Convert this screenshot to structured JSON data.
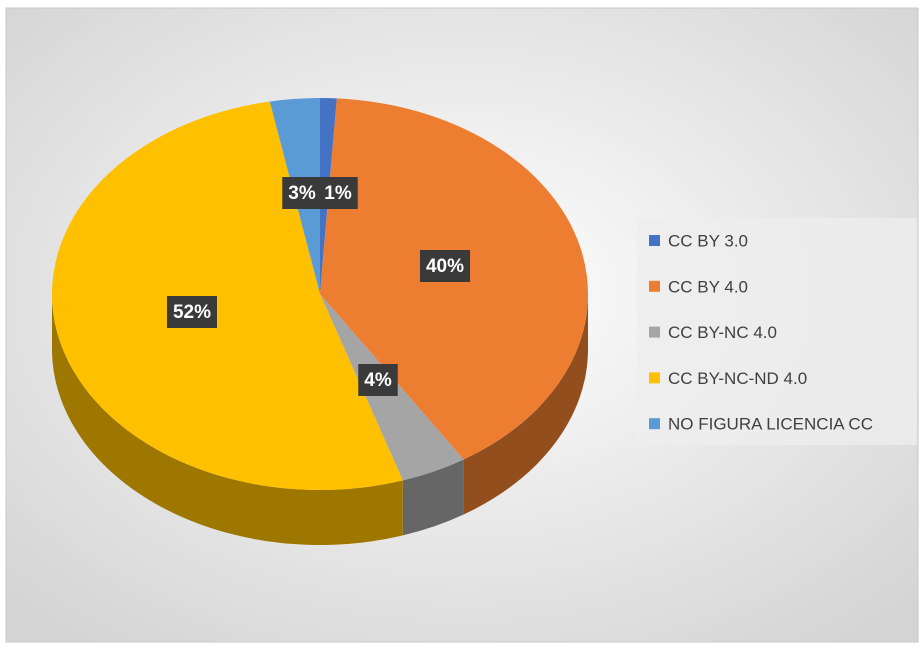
{
  "chart_data": {
    "type": "pie",
    "categories": [
      "CC BY 3.0",
      "CC BY 4.0",
      "CC BY-NC 4.0",
      "CC BY-NC-ND 4.0",
      "NO FIGURA LICENCIA CC"
    ],
    "values": [
      1,
      40,
      4,
      52,
      3
    ],
    "value_labels": [
      "1%",
      "40%",
      "4%",
      "52%",
      "3%"
    ],
    "colors": [
      "#4472c4",
      "#ed7d31",
      "#a5a5a5",
      "#ffc000",
      "#5b9bd5"
    ],
    "legend": "right"
  }
}
